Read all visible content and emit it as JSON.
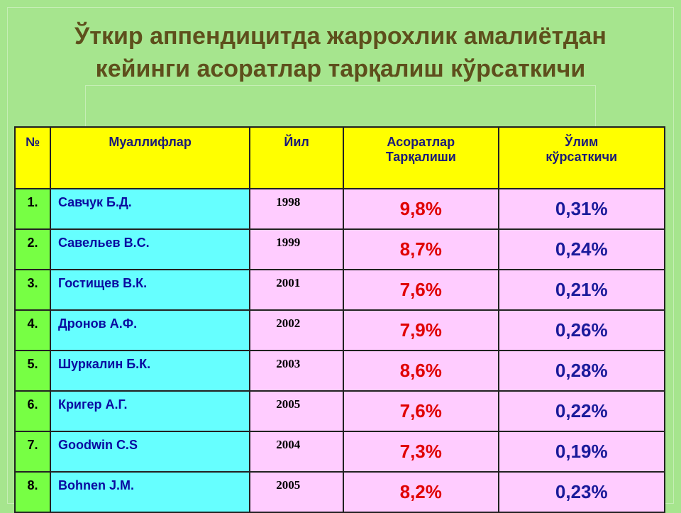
{
  "title_lines": [
    "Ўткир аппендицитда жаррохлик амалиётдан",
    "кейинги асоратлар тарқалиш кўрсаткичи"
  ],
  "table": {
    "header": [
      "№",
      "Муаллифлар",
      "Йил",
      "Асоратлар\nТарқалиши",
      "Ўлим\nкўрсаткичи"
    ],
    "rows": [
      [
        "1.",
        "Савчук Б.Д.",
        "1998",
        "9,8%",
        "0,31%"
      ],
      [
        "2.",
        "Савельев В.С.",
        "1999",
        "8,7%",
        "0,24%"
      ],
      [
        "3.",
        "Гостищев В.К.",
        "2001",
        "7,6%",
        "0,21%"
      ],
      [
        "4.",
        "Дронов А.Ф.",
        "2002",
        "7,9%",
        "0,26%"
      ],
      [
        "5.",
        "Шуркалин Б.К.",
        "2003",
        "8,6%",
        "0,28%"
      ],
      [
        "6.",
        "Кригер А.Г.",
        "2005",
        "7,6%",
        "0,22%"
      ],
      [
        "7.",
        "Goodwin C.S",
        "2004",
        "7,3%",
        "0,19%"
      ],
      [
        "8.",
        "Bohnen J.M.",
        "2005",
        "8,2%",
        "0,23%"
      ]
    ]
  }
}
